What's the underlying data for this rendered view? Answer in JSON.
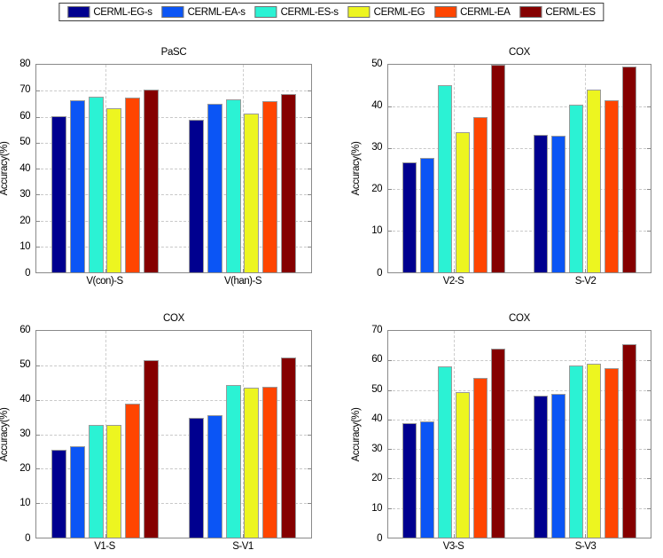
{
  "legend": {
    "items": [
      {
        "label": "CERML-EG-s",
        "color": "#00008F"
      },
      {
        "label": "CERML-EA-s",
        "color": "#0B55F5"
      },
      {
        "label": "CERML-ES-s",
        "color": "#2BF2D4"
      },
      {
        "label": "CERML-EG",
        "color": "#EDF520"
      },
      {
        "label": "CERML-EA",
        "color": "#FF4500"
      },
      {
        "label": "CERML-ES",
        "color": "#850000"
      }
    ]
  },
  "chart_data": [
    {
      "type": "bar",
      "title": "PaSC",
      "ylabel": "Accuracy(%)",
      "ylim": [
        0,
        80
      ],
      "ytick_step": 10,
      "grid": true,
      "legend_position": "top-outside-shared",
      "categories": [
        "V(con)-S",
        "V(han)-S"
      ],
      "series": [
        {
          "name": "CERML-EG-s",
          "color": "#00008F",
          "values": [
            60.2,
            58.7
          ]
        },
        {
          "name": "CERML-EA-s",
          "color": "#0B55F5",
          "values": [
            66.3,
            65.1
          ]
        },
        {
          "name": "CERML-ES-s",
          "color": "#2BF2D4",
          "values": [
            67.8,
            66.8
          ]
        },
        {
          "name": "CERML-EG",
          "color": "#EDF520",
          "values": [
            63.4,
            61.2
          ]
        },
        {
          "name": "CERML-EA",
          "color": "#FF4500",
          "values": [
            67.5,
            65.9
          ]
        },
        {
          "name": "CERML-ES",
          "color": "#850000",
          "values": [
            70.4,
            68.6
          ]
        }
      ]
    },
    {
      "type": "bar",
      "title": "COX",
      "ylabel": "Accuracy(%)",
      "ylim": [
        0,
        50
      ],
      "ytick_step": 10,
      "grid": true,
      "legend_position": "top-outside-shared",
      "categories": [
        "V2-S",
        "S-V2"
      ],
      "series": [
        {
          "name": "CERML-EG-s",
          "color": "#00008F",
          "values": [
            26.5,
            33.2
          ]
        },
        {
          "name": "CERML-EA-s",
          "color": "#0B55F5",
          "values": [
            27.5,
            32.9
          ]
        },
        {
          "name": "CERML-ES-s",
          "color": "#2BF2D4",
          "values": [
            45.0,
            40.3
          ]
        },
        {
          "name": "CERML-EG",
          "color": "#EDF520",
          "values": [
            33.8,
            44.1
          ]
        },
        {
          "name": "CERML-EA",
          "color": "#FF4500",
          "values": [
            37.4,
            41.4
          ]
        },
        {
          "name": "CERML-ES",
          "color": "#850000",
          "values": [
            50.0,
            49.5
          ]
        }
      ]
    },
    {
      "type": "bar",
      "title": "COX",
      "ylabel": "Accuracy(%)",
      "ylim": [
        0,
        60
      ],
      "ytick_step": 10,
      "grid": true,
      "legend_position": "top-outside-shared",
      "categories": [
        "V1-S",
        "S-V1"
      ],
      "series": [
        {
          "name": "CERML-EG-s",
          "color": "#00008F",
          "values": [
            25.5,
            34.8
          ]
        },
        {
          "name": "CERML-EA-s",
          "color": "#0B55F5",
          "values": [
            26.5,
            35.5
          ]
        },
        {
          "name": "CERML-ES-s",
          "color": "#2BF2D4",
          "values": [
            32.8,
            44.2
          ]
        },
        {
          "name": "CERML-EG",
          "color": "#EDF520",
          "values": [
            32.7,
            43.4
          ]
        },
        {
          "name": "CERML-EA",
          "color": "#FF4500",
          "values": [
            38.8,
            43.8
          ]
        },
        {
          "name": "CERML-ES",
          "color": "#850000",
          "values": [
            51.5,
            52.4
          ]
        }
      ]
    },
    {
      "type": "bar",
      "title": "COX",
      "ylabel": "Accuracy(%)",
      "ylim": [
        0,
        70
      ],
      "ytick_step": 10,
      "grid": true,
      "legend_position": "top-outside-shared",
      "categories": [
        "V3-S",
        "S-V3"
      ],
      "series": [
        {
          "name": "CERML-EG-s",
          "color": "#00008F",
          "values": [
            38.7,
            48.0
          ]
        },
        {
          "name": "CERML-EA-s",
          "color": "#0B55F5",
          "values": [
            39.5,
            48.7
          ]
        },
        {
          "name": "CERML-ES-s",
          "color": "#2BF2D4",
          "values": [
            58.0,
            58.2
          ]
        },
        {
          "name": "CERML-EG",
          "color": "#EDF520",
          "values": [
            49.4,
            58.8
          ]
        },
        {
          "name": "CERML-EA",
          "color": "#FF4500",
          "values": [
            54.0,
            57.5
          ]
        },
        {
          "name": "CERML-ES",
          "color": "#850000",
          "values": [
            64.1,
            65.5
          ]
        }
      ]
    }
  ]
}
